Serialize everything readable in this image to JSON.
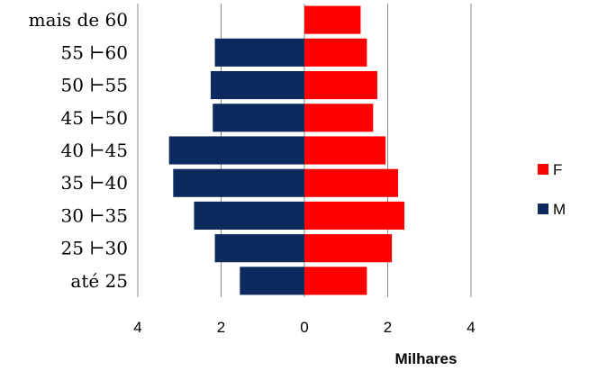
{
  "chart_data": {
    "type": "bar",
    "orientation": "horizontal",
    "subtype": "population pyramid",
    "categories": [
      "até 25",
      "25 ⊢30",
      "30 ⊢35",
      "35 ⊢40",
      "40 ⊢45",
      "45 ⊢50",
      "50 ⊢55",
      "55 ⊢60",
      "mais de 60"
    ],
    "series": [
      {
        "name": "F",
        "color": "#ff0000",
        "values": [
          1.5,
          2.1,
          2.4,
          2.25,
          1.95,
          1.65,
          1.75,
          1.5,
          1.35
        ]
      },
      {
        "name": "M",
        "color": "#0d2a5e",
        "values": [
          1.55,
          2.15,
          2.65,
          3.15,
          3.25,
          2.2,
          2.25,
          2.15,
          0
        ]
      }
    ],
    "xlabel": "Milhares",
    "ylabel": "",
    "xlim": [
      -4,
      4
    ],
    "x_ticks": [
      -4,
      -2,
      0,
      2,
      4
    ],
    "x_tick_labels": [
      "4",
      "2",
      "0",
      "2",
      "4"
    ],
    "grid": "vertical",
    "legend_position": "right"
  }
}
